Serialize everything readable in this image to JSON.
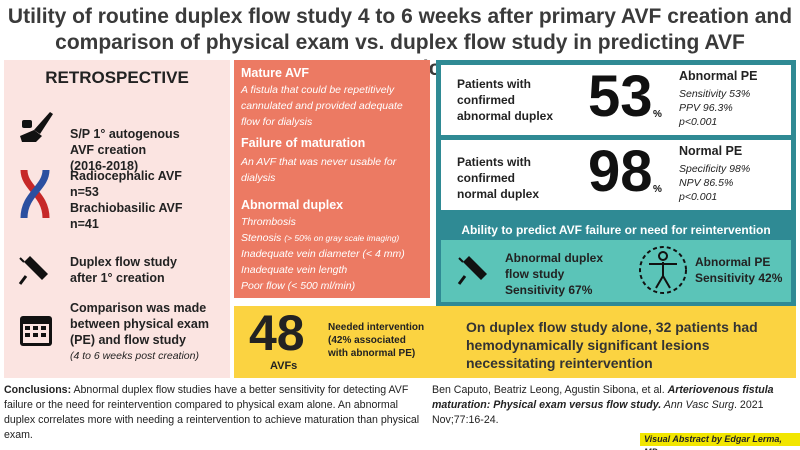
{
  "title": {
    "line1": "Utility of routine duplex flow study 4 to 6 weeks after primary AVF creation and",
    "line2": "comparison of physical exam vs. duplex flow study in predicting AVF maturation"
  },
  "left": {
    "heading": "RETROSPECTIVE",
    "creation": {
      "l1": "S/P 1° autogenous",
      "l2": "AVF creation",
      "l3": "(2016-2018)"
    },
    "access": {
      "l1": "Radiocephalic AVF",
      "l2": "n=53",
      "l3": "Brachiobasilic AVF",
      "l4": "n=41"
    },
    "duplex": {
      "l1": "Duplex flow study",
      "l2": "after 1° creation"
    },
    "comparison": {
      "l1": "Comparison was made",
      "l2": "between physical exam",
      "l3": "(PE) and flow study",
      "l4": "(4 to 6 weeks post creation)"
    }
  },
  "middle": {
    "mature_heading": "Mature AVF",
    "mature_l1": "A fistula that could be repetitively",
    "mature_l2": "cannulated and provided adequate",
    "mature_l3": "flow for dialysis",
    "failure_heading": "Failure of maturation",
    "failure_l1": "An AVF that was never usable for",
    "failure_l2": "dialysis",
    "abn_heading": "Abnormal duplex",
    "abn_1": "Thrombosis",
    "abn_2a": "Stenosis ",
    "abn_2b": "(> 50% on gray scale imaging)",
    "abn_3": "Inadequate vein diameter (< 4 mm)",
    "abn_4": "Inadequate vein length",
    "abn_5": "Poor flow (< 500 ml/min)"
  },
  "right": {
    "card1": {
      "l1": "Patients with",
      "l2": "confirmed",
      "l3": "abnormal duplex",
      "number": "53",
      "unit": "%",
      "stat_heading": "Abnormal PE",
      "s1": "Sensitivity 53%",
      "s2": "PPV 96.3%",
      "s3": "p<0.001"
    },
    "card2": {
      "l1": "Patients with",
      "l2": "confirmed",
      "l3": "normal duplex",
      "number": "98",
      "unit": "%",
      "stat_heading": "Normal PE",
      "s1": "Specificity 98%",
      "s2": "NPV 86.5%",
      "s3": "p<0.001"
    },
    "ability": {
      "heading": "Ability to predict AVF failure or need for reintervention",
      "d1": "Abnormal duplex",
      "d2": "flow study",
      "d3": "Sensitivity 67%",
      "p1": "Abnormal PE",
      "p2": "Sensitivity 42%"
    }
  },
  "bottom": {
    "number": "48",
    "unit": "AVFs",
    "n1": "Needed intervention",
    "n2": "(42% associated",
    "n3": "with abnormal PE)",
    "d1": "On duplex flow study alone, 32 patients had",
    "d2": "hemodynamically significant lesions",
    "d3": "necessitating reintervention"
  },
  "conclusion": {
    "label": "Conclusions:",
    "text": " Abnormal duplex flow studies have a better sensitivity for detecting AVF failure or the need for reintervention compared to physical exam alone. An abnormal duplex correlates more with needing a reintervention to achieve maturation than physical exam."
  },
  "citation": {
    "authors": "Ben Caputo, Beatriz Leong, Agustin Sibona, et al. ",
    "article": "Arteriovenous fistula maturation: Physical exam versus flow study.",
    "journal": " Ann Vasc Surg",
    "rest": ". 2021 Nov;77:16-24."
  },
  "credit": "Visual Abstract by Edgar Lerma, MD",
  "icons": [
    "scalpel-hand-icon",
    "vessel-icon",
    "ultrasound-probe-icon",
    "calendar-icon",
    "ultrasound-probe-icon",
    "body-exam-icon"
  ],
  "colors": {
    "pink": "#fbe4e1",
    "salmon": "#ec7a63",
    "teal": "#2f8a94",
    "mint": "#5bc4b8",
    "yellow": "#fbd341"
  }
}
